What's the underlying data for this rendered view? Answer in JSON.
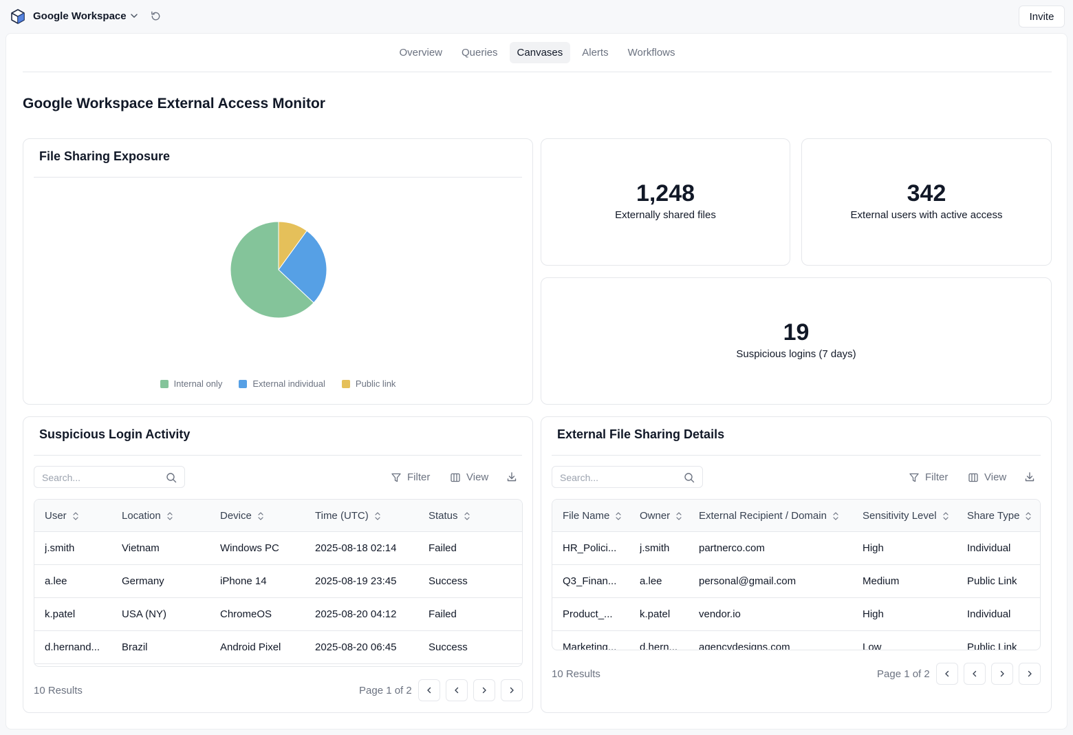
{
  "app": {
    "workspace_name": "Google Workspace",
    "invite_label": "Invite"
  },
  "tabs": [
    "Overview",
    "Queries",
    "Canvases",
    "Alerts",
    "Workflows"
  ],
  "active_tab": "Canvases",
  "page_title": "Google Workspace External Access Monitor",
  "pie": {
    "title": "File Sharing Exposure",
    "chart_data": {
      "type": "pie",
      "categories": [
        "Internal only",
        "External individual",
        "Public link"
      ],
      "values": [
        63,
        27,
        10
      ],
      "colors": [
        "#84c49a",
        "#56a0e5",
        "#e5c05a"
      ],
      "legend": "bottom"
    }
  },
  "kpis": [
    {
      "value": "1,248",
      "label": "Externally shared files"
    },
    {
      "value": "342",
      "label": "External users with active access"
    },
    {
      "value": "19",
      "label": "Suspicious logins (7 days)"
    }
  ],
  "logins": {
    "title": "Suspicious Login Activity",
    "search_placeholder": "Search...",
    "filter_label": "Filter",
    "view_label": "View",
    "columns": [
      "User",
      "Location",
      "Device",
      "Time (UTC)",
      "Status"
    ],
    "rows": [
      [
        "j.smith",
        "Vietnam",
        "Windows PC",
        "2025-08-18 02:14",
        "Failed"
      ],
      [
        "a.lee",
        "Germany",
        "iPhone 14",
        "2025-08-19 23:45",
        "Success"
      ],
      [
        "k.patel",
        "USA (NY)",
        "ChromeOS",
        "2025-08-20 04:12",
        "Failed"
      ],
      [
        "d.hernand...",
        "Brazil",
        "Android Pixel",
        "2025-08-20 06:45",
        "Success"
      ]
    ],
    "results": "10 Results",
    "page": "Page 1 of 2"
  },
  "files": {
    "title": "External File Sharing Details",
    "search_placeholder": "Search...",
    "filter_label": "Filter",
    "view_label": "View",
    "columns": [
      "File Name",
      "Owner",
      "External Recipient / Domain",
      "Sensitivity Level",
      "Share Type"
    ],
    "rows": [
      [
        "HR_Polici...",
        "j.smith",
        "partnerco.com",
        "High",
        "Individual"
      ],
      [
        "Q3_Finan...",
        "a.lee",
        "personal@gmail.com",
        "Medium",
        "Public Link"
      ],
      [
        "Product_...",
        "k.patel",
        "vendor.io",
        "High",
        "Individual"
      ],
      [
        "Marketing...",
        "d.hern...",
        "agencydesigns.com",
        "Low",
        "Public Link"
      ]
    ],
    "results": "10 Results",
    "page": "Page 1 of 2"
  }
}
